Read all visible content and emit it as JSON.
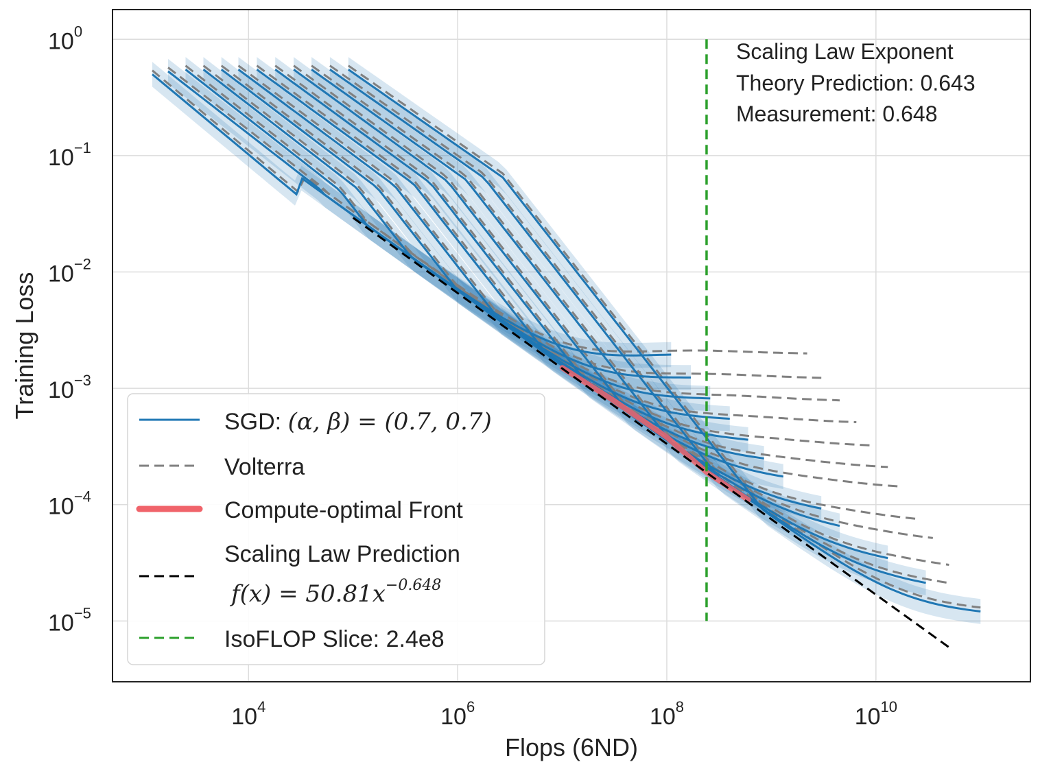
{
  "chart_data": {
    "type": "line",
    "xscale": "log",
    "yscale": "log",
    "xlim": [
      500,
      300000000000
    ],
    "ylim": [
      3e-06,
      1.8
    ],
    "xlabel": "Flops (6ND)",
    "ylabel": "Training Loss",
    "grid": true,
    "x_ticks": [
      {
        "value": 10000,
        "base": "10",
        "exp": "4"
      },
      {
        "value": 1000000,
        "base": "10",
        "exp": "6"
      },
      {
        "value": 100000000,
        "base": "10",
        "exp": "8"
      },
      {
        "value": 10000000000,
        "base": "10",
        "exp": "10"
      }
    ],
    "y_ticks": [
      {
        "value": 1,
        "base": "10",
        "exp": "0"
      },
      {
        "value": 0.1,
        "base": "10",
        "exp": "−1"
      },
      {
        "value": 0.01,
        "base": "10",
        "exp": "−2"
      },
      {
        "value": 0.001,
        "base": "10",
        "exp": "−3"
      },
      {
        "value": 0.0001,
        "base": "10",
        "exp": "−4"
      },
      {
        "value": 1e-05,
        "base": "10",
        "exp": "−5"
      }
    ],
    "annotation": [
      "Scaling Law Exponent",
      "Theory Prediction: 0.643",
      "Measurement: 0.648"
    ],
    "colors": {
      "sgd": "#1f77b4",
      "sgd_band": "#1f77b4",
      "volterra": "#808080",
      "front": "#f0636a",
      "scaling": "#000000",
      "isoflop": "#2ca02c"
    },
    "legend": {
      "position": "lower-left",
      "entries": [
        {
          "name": "sgd",
          "label": "SGD: ",
          "math": "(α, β) = (0.7, 0.7)",
          "style": "solid"
        },
        {
          "name": "volterra",
          "label": "Volterra",
          "math": "",
          "style": "dashed"
        },
        {
          "name": "front",
          "label": "Compute-optimal Front",
          "math": "",
          "style": "thick"
        },
        {
          "name": "scaling",
          "label": "Scaling Law Prediction",
          "math": "f(x) = 50.81x",
          "math_exp": "−0.648",
          "style": "dashed"
        },
        {
          "name": "isoflop",
          "label": "IsoFLOP Slice: 2.4e8",
          "math": "",
          "style": "dashed"
        }
      ]
    },
    "isoflop_x": 240000000,
    "isoflop_yrange": [
      1e-05,
      1
    ],
    "scaling_law": {
      "coef": 50.81,
      "exponent": -0.648,
      "x_range": [
        100000,
        50000000000
      ]
    },
    "front": {
      "x": [
        10000000,
        30000000,
        100000000,
        240000000,
        600000000
      ],
      "y": [
        0.0015,
        0.0008,
        0.00038,
        0.00019,
        0.00011
      ]
    },
    "series": [
      {
        "x_start": 1200,
        "y_start": 0.5,
        "x_knee": 30000,
        "y_knee": 0.045,
        "x_end": 110000000,
        "y_floor": 0.0018,
        "volterra_end": 2200000000
      },
      {
        "x_start": 1700,
        "y_start": 0.53,
        "x_knee": 50000,
        "y_knee": 0.05,
        "x_end": 170000000,
        "y_floor": 0.0011,
        "volterra_end": 3000000000
      },
      {
        "x_start": 2500,
        "y_start": 0.55,
        "x_knee": 75000,
        "y_knee": 0.05,
        "x_end": 260000000,
        "y_floor": 0.0007,
        "volterra_end": 4500000000
      },
      {
        "x_start": 3700,
        "y_start": 0.55,
        "x_knee": 110000,
        "y_knee": 0.052,
        "x_end": 400000000,
        "y_floor": 0.00045,
        "volterra_end": 6500000000
      },
      {
        "x_start": 5500,
        "y_start": 0.55,
        "x_knee": 170000,
        "y_knee": 0.053,
        "x_end": 600000000,
        "y_floor": 0.00028,
        "volterra_end": 9000000000
      },
      {
        "x_start": 8000,
        "y_start": 0.55,
        "x_knee": 250000,
        "y_knee": 0.055,
        "x_end": 850000000,
        "y_floor": 0.00018,
        "volterra_end": 13000000000
      },
      {
        "x_start": 12000,
        "y_start": 0.55,
        "x_knee": 380000,
        "y_knee": 0.057,
        "x_end": 1300000000,
        "y_floor": 0.00012,
        "volterra_end": 18000000000
      },
      {
        "x_start": 18000,
        "y_start": 0.55,
        "x_knee": 550000,
        "y_knee": 0.058,
        "x_end": 3000000000,
        "y_floor": 6e-05,
        "volterra_end": 25000000000
      },
      {
        "x_start": 27000,
        "y_start": 0.55,
        "x_knee": 800000,
        "y_knee": 0.06,
        "x_end": 4500000000,
        "y_floor": 4e-05,
        "volterra_end": 35000000000
      },
      {
        "x_start": 40000,
        "y_start": 0.55,
        "x_knee": 1200000,
        "y_knee": 0.062,
        "x_end": 13000000000,
        "y_floor": 2.2e-05,
        "volterra_end": 50000000000
      },
      {
        "x_start": 60000,
        "y_start": 0.55,
        "x_knee": 1800000,
        "y_knee": 0.064,
        "x_end": 30000000000,
        "y_floor": 1.4e-05,
        "volterra_end": 50000000000
      },
      {
        "x_start": 90000,
        "y_start": 0.55,
        "x_knee": 2700000,
        "y_knee": 0.065,
        "x_end": 100000000000,
        "y_floor": 9e-06,
        "volterra_end": 100000000000
      }
    ]
  }
}
